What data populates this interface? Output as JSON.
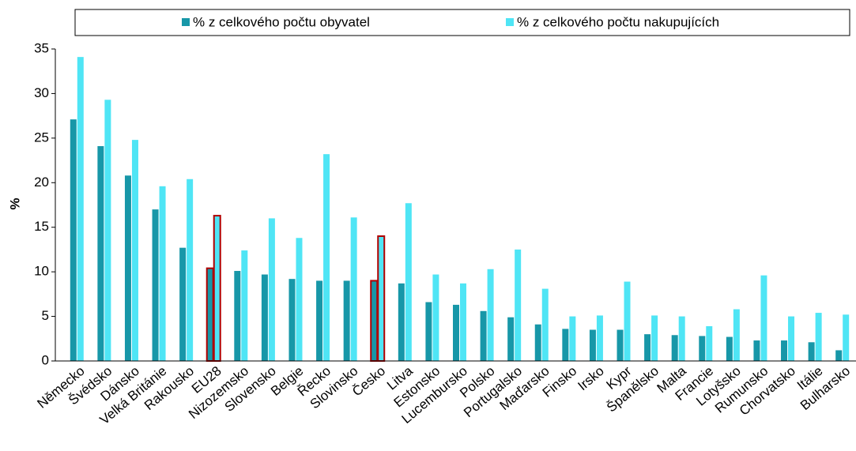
{
  "chart_data": {
    "type": "bar",
    "y_label": "%",
    "categories": [
      "Německo",
      "Švédsko",
      "Dánsko",
      "Velká Británie",
      "Rakousko",
      "EU28",
      "Nizozemsko",
      "Slovensko",
      "Belgie",
      "Řecko",
      "Slovinsko",
      "Česko",
      "Litva",
      "Estonsko",
      "Lucembursko",
      "Polsko",
      "Portugalsko",
      "Maďarsko",
      "Finsko",
      "Irsko",
      "Kypr",
      "Španělsko",
      "Malta",
      "Francie",
      "Lotyšsko",
      "Rumunsko",
      "Chorvatsko",
      "Itálie",
      "Bulharsko"
    ],
    "series": [
      {
        "name": "% z celkového počtu obyvatel",
        "color": "#1797a8",
        "values": [
          27.1,
          24.1,
          20.8,
          17.0,
          12.7,
          10.4,
          10.1,
          9.7,
          9.2,
          9.0,
          9.0,
          9.0,
          8.7,
          6.6,
          6.3,
          5.6,
          4.9,
          4.1,
          3.6,
          3.5,
          3.5,
          3.0,
          2.9,
          2.8,
          2.7,
          2.3,
          2.3,
          2.1,
          1.2
        ]
      },
      {
        "name": "% z celkového počtu nakupujících",
        "color": "#4fe5f5",
        "values": [
          34.1,
          29.3,
          24.8,
          19.6,
          20.4,
          16.3,
          12.4,
          16.0,
          13.8,
          23.2,
          16.1,
          14.0,
          17.7,
          9.7,
          8.7,
          10.3,
          12.5,
          8.1,
          5.0,
          5.1,
          8.9,
          5.1,
          5.0,
          3.9,
          5.8,
          9.6,
          5.0,
          5.4,
          5.2
        ]
      }
    ],
    "highlight": [
      "EU28",
      "Česko"
    ],
    "highlight_color": "#b00000",
    "ylim": [
      0,
      35
    ],
    "yticks": [
      0,
      5,
      10,
      15,
      20,
      25,
      30,
      35
    ],
    "grid": false,
    "legend": "top"
  }
}
